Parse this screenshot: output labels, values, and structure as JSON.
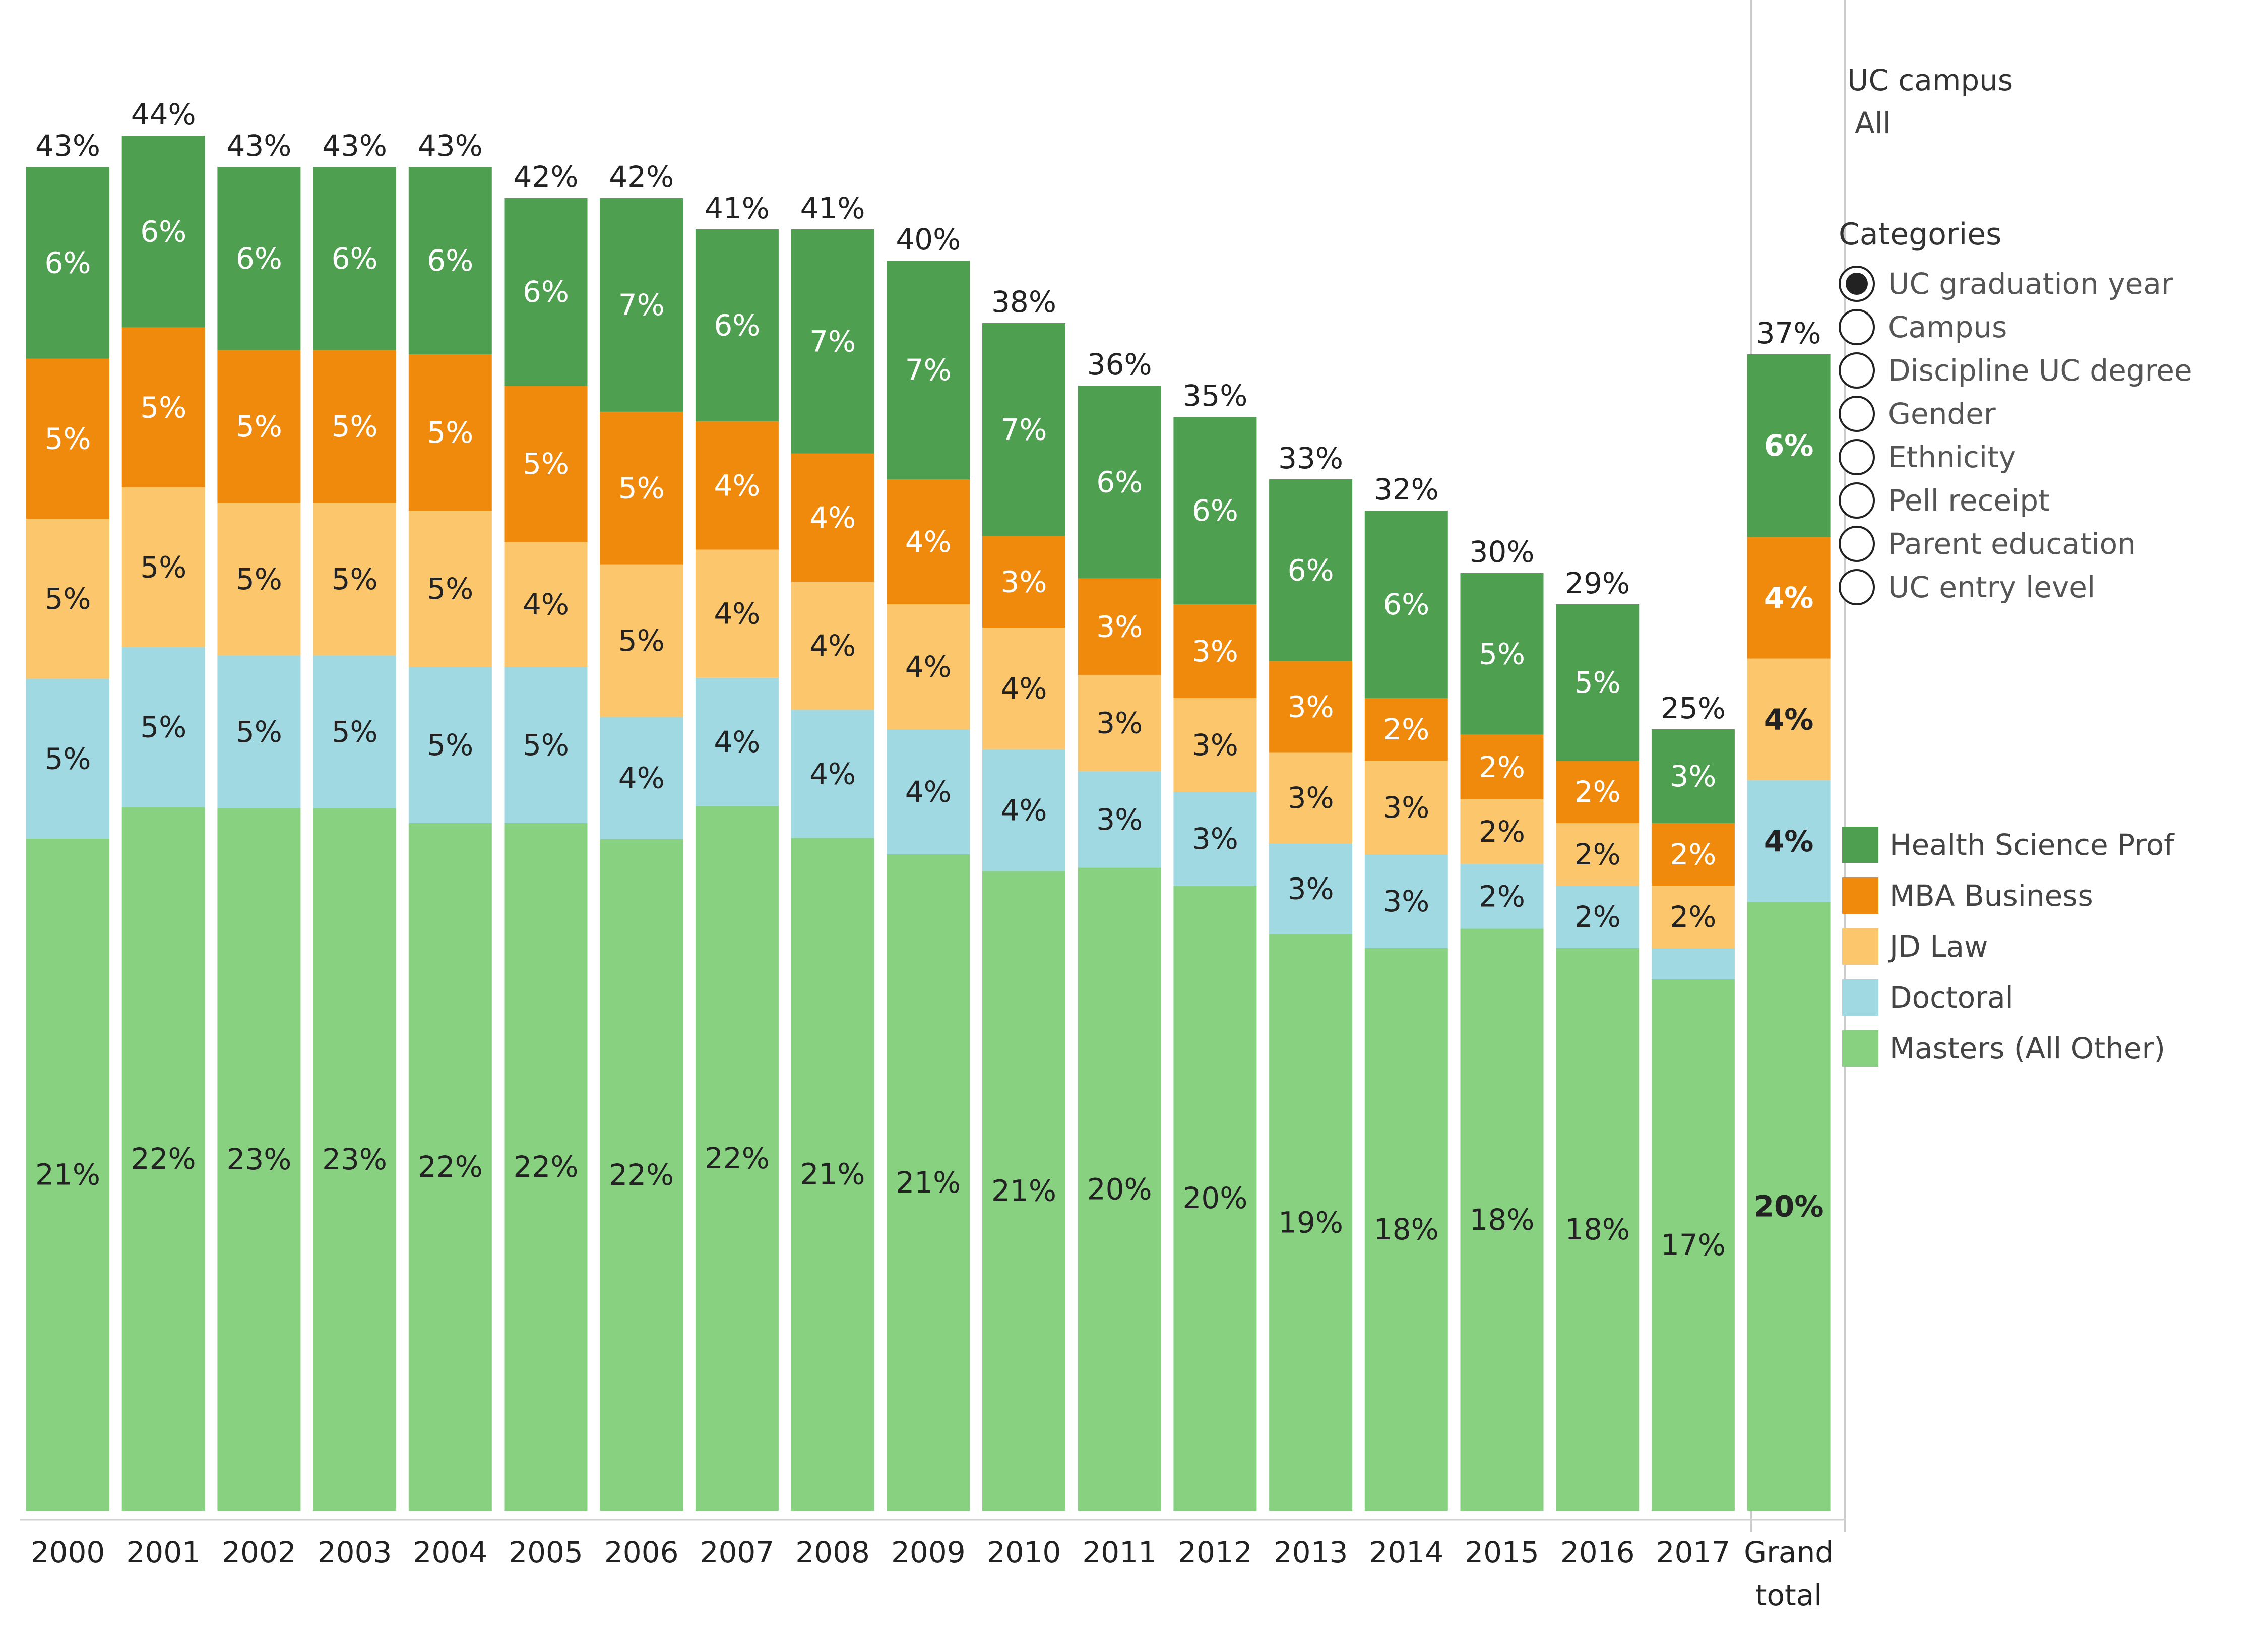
{
  "filter": {
    "title": "UC campus",
    "value": "All"
  },
  "categories": {
    "title": "Categories",
    "options": [
      "UC graduation year",
      "Campus",
      "Discipline UC degree",
      "Gender",
      "Ethnicity",
      "Pell receipt",
      "Parent education",
      "UC entry level"
    ],
    "selected": "UC graduation year"
  },
  "legend": [
    {
      "label": "Health Science Prof",
      "color": "#4e9f50"
    },
    {
      "label": "MBA Business",
      "color": "#ef8a0c"
    },
    {
      "label": "JD Law",
      "color": "#fcc66d"
    },
    {
      "label": "Doctoral",
      "color": "#a0d9e2"
    },
    {
      "label": "Masters (All Other)",
      "color": "#87d180"
    }
  ],
  "chart_data": {
    "type": "bar",
    "stacked": true,
    "title": "",
    "xlabel": "",
    "ylabel": "",
    "ylim": [
      0,
      45
    ],
    "categories": [
      "2000",
      "2001",
      "2002",
      "2003",
      "2004",
      "2005",
      "2006",
      "2007",
      "2008",
      "2009",
      "2010",
      "2011",
      "2012",
      "2013",
      "2014",
      "2015",
      "2016",
      "2017",
      "Grand total"
    ],
    "series": [
      {
        "name": "Masters (All Other)",
        "color": "#87d180",
        "values": [
          21,
          22,
          23,
          23,
          22,
          22,
          22,
          22,
          21,
          21,
          21,
          20,
          20,
          19,
          18,
          18,
          18,
          17,
          20
        ],
        "labels": [
          "21%",
          "22%",
          "23%",
          "23%",
          "22%",
          "22%",
          "22%",
          "22%",
          "21%",
          "21%",
          "21%",
          "20%",
          "20%",
          "19%",
          "18%",
          "18%",
          "18%",
          "17%",
          "20%"
        ]
      },
      {
        "name": "Doctoral",
        "color": "#a0d9e2",
        "values": [
          5,
          5,
          5,
          5,
          5,
          5,
          4,
          4,
          4,
          4,
          4,
          3,
          3,
          3,
          3,
          2,
          2,
          1,
          4
        ],
        "labels": [
          "5%",
          "5%",
          "5%",
          "5%",
          "5%",
          "5%",
          "4%",
          "4%",
          "4%",
          "4%",
          "4%",
          "3%",
          "3%",
          "3%",
          "3%",
          "2%",
          "2%",
          "",
          "4%"
        ]
      },
      {
        "name": "JD Law",
        "color": "#fcc66d",
        "values": [
          5,
          5,
          5,
          5,
          5,
          4,
          5,
          4,
          4,
          4,
          4,
          3,
          3,
          3,
          3,
          2,
          2,
          2,
          4
        ],
        "labels": [
          "5%",
          "5%",
          "5%",
          "5%",
          "5%",
          "4%",
          "5%",
          "4%",
          "4%",
          "4%",
          "4%",
          "3%",
          "3%",
          "3%",
          "3%",
          "2%",
          "2%",
          "2%",
          "4%"
        ]
      },
      {
        "name": "MBA Business",
        "color": "#ef8a0c",
        "values": [
          5,
          5,
          5,
          5,
          5,
          5,
          5,
          4,
          4,
          4,
          3,
          3,
          3,
          3,
          2,
          2,
          2,
          2,
          4
        ],
        "labels": [
          "5%",
          "5%",
          "5%",
          "5%",
          "5%",
          "5%",
          "5%",
          "4%",
          "4%",
          "4%",
          "3%",
          "3%",
          "3%",
          "3%",
          "2%",
          "2%",
          "2%",
          "2%",
          "4%"
        ]
      },
      {
        "name": "Health Science Prof",
        "color": "#4e9f50",
        "values": [
          6,
          6,
          6,
          6,
          6,
          6,
          7,
          6,
          7,
          7,
          7,
          6,
          6,
          6,
          6,
          5,
          5,
          3,
          6
        ],
        "labels": [
          "6%",
          "6%",
          "6%",
          "6%",
          "6%",
          "6%",
          "7%",
          "6%",
          "7%",
          "7%",
          "7%",
          "6%",
          "6%",
          "6%",
          "6%",
          "5%",
          "5%",
          "3%",
          "6%"
        ]
      }
    ],
    "totals": [
      "43%",
      "44%",
      "43%",
      "43%",
      "43%",
      "42%",
      "42%",
      "41%",
      "41%",
      "40%",
      "38%",
      "36%",
      "35%",
      "33%",
      "32%",
      "30%",
      "29%",
      "25%",
      "37%"
    ],
    "xlabels": [
      [
        "2000"
      ],
      [
        "2001"
      ],
      [
        "2002"
      ],
      [
        "2003"
      ],
      [
        "2004"
      ],
      [
        "2005"
      ],
      [
        "2006"
      ],
      [
        "2007"
      ],
      [
        "2008"
      ],
      [
        "2009"
      ],
      [
        "2010"
      ],
      [
        "2011"
      ],
      [
        "2012"
      ],
      [
        "2013"
      ],
      [
        "2014"
      ],
      [
        "2015"
      ],
      [
        "2016"
      ],
      [
        "2017"
      ],
      [
        "Grand",
        "total"
      ]
    ]
  }
}
